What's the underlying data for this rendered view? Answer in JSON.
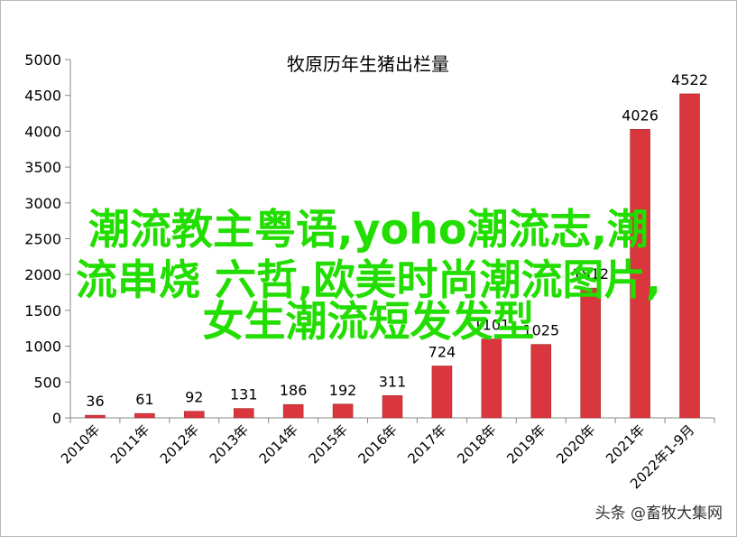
{
  "chart_data": {
    "type": "bar",
    "title": "牧原历年生猪出栏量",
    "categories": [
      "2010年",
      "2011年",
      "2012年",
      "2013年",
      "2014年",
      "2015年",
      "2016年",
      "2017年",
      "2018年",
      "2019年",
      "2020年",
      "2021年",
      "2022年1-9月"
    ],
    "values": [
      36,
      61,
      92,
      131,
      186,
      192,
      311,
      724,
      1101,
      1025,
      1812,
      4026,
      4522
    ],
    "value_labels": [
      "36",
      "61",
      "92",
      "131",
      "186",
      "192",
      "311",
      "724",
      "1101",
      "1025",
      "1812",
      "4026",
      "4522"
    ],
    "ylim": [
      0,
      5000
    ],
    "yticks": [
      "0",
      "500",
      "1000",
      "1500",
      "2000",
      "2500",
      "3000",
      "3500",
      "4000",
      "4500",
      "5000"
    ],
    "grid": false,
    "bar_color": "#d9363e"
  },
  "overlay": {
    "line1": "潮流教主粤语,yoho潮流志,潮",
    "line2": "流串烧 六哲,欧美时尚潮流图片,",
    "line3": "女生潮流短发发型",
    "color": "#22dd00"
  },
  "watermark": "头条 @畜牧大集网"
}
